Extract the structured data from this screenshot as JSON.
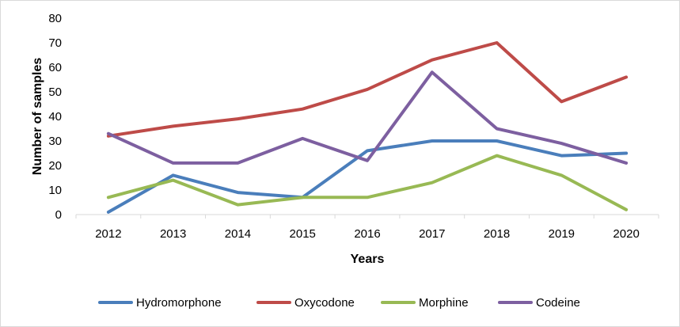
{
  "chart_data": {
    "type": "line",
    "title": "",
    "xlabel": "Years",
    "ylabel": "Number of samples",
    "ylim": [
      0,
      80
    ],
    "yticks": [
      0,
      10,
      20,
      30,
      40,
      50,
      60,
      70,
      80
    ],
    "grid": false,
    "legend_position": "bottom",
    "categories": [
      "2012",
      "2013",
      "2014",
      "2015",
      "2016",
      "2017",
      "2018",
      "2019",
      "2020"
    ],
    "series": [
      {
        "name": "Hydromorphone",
        "color": "#4a7ebb",
        "values": [
          1,
          16,
          9,
          7,
          26,
          30,
          30,
          24,
          25
        ]
      },
      {
        "name": "Oxycodone",
        "color": "#be4b48",
        "values": [
          32,
          36,
          39,
          43,
          51,
          63,
          70,
          46,
          56
        ]
      },
      {
        "name": "Morphine",
        "color": "#98b954",
        "values": [
          7,
          14,
          4,
          7,
          7,
          13,
          24,
          16,
          2
        ]
      },
      {
        "name": "Codeine",
        "color": "#7d5fa0",
        "values": [
          33,
          21,
          21,
          31,
          22,
          58,
          35,
          29,
          21
        ]
      }
    ]
  }
}
